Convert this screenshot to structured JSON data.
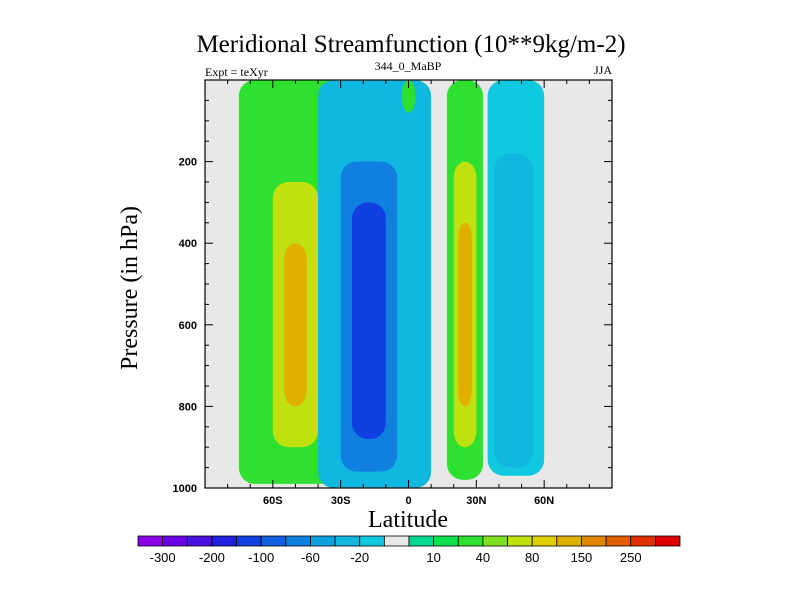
{
  "chart_data": {
    "type": "heatmap",
    "title": "Meridional Streamfunction (10**9kg/m-2)",
    "subtitle_left": "Expt = teXyr",
    "subtitle_center": "344_0_MaBP",
    "subtitle_right": "JJA",
    "xlabel": "Latitude",
    "ylabel": "Pressure (in hPa)",
    "xlim": [
      -90,
      90
    ],
    "ylim": [
      1000,
      0
    ],
    "x_ticks": [
      {
        "value": -60,
        "label": "60S"
      },
      {
        "value": -30,
        "label": "30S"
      },
      {
        "value": 0,
        "label": "0"
      },
      {
        "value": 30,
        "label": "30N"
      },
      {
        "value": 60,
        "label": "60N"
      }
    ],
    "y_ticks": [
      {
        "value": 200,
        "label": "200"
      },
      {
        "value": 400,
        "label": "400"
      },
      {
        "value": 600,
        "label": "600"
      },
      {
        "value": 800,
        "label": "800"
      },
      {
        "value": 1000,
        "label": "1000"
      }
    ],
    "colorbar": {
      "labels": [
        "-300",
        "-200",
        "-100",
        "-60",
        "-20",
        "10",
        "40",
        "80",
        "150",
        "250"
      ],
      "colors": [
        "#8c00e6",
        "#6a00e6",
        "#4a10e0",
        "#2020e0",
        "#1040e0",
        "#1060e0",
        "#1080e0",
        "#10a0e0",
        "#10b8e0",
        "#10c8e0",
        "#e8e8e8",
        "#00d890",
        "#10e050",
        "#30e030",
        "#80e020",
        "#c0e010",
        "#e0d000",
        "#e0b000",
        "#e08800",
        "#e06000",
        "#e03000",
        "#e00000"
      ]
    },
    "cells": [
      {
        "region": "sh-outer-cell",
        "lat_range": [
          -75,
          -30
        ],
        "p_range": [
          0,
          990
        ],
        "value": 20
      },
      {
        "region": "sh-outer-core",
        "lat_range": [
          -60,
          -40
        ],
        "p_range": [
          250,
          900
        ],
        "value": 60
      },
      {
        "region": "sh-outer-max",
        "lat_range": [
          -55,
          -45
        ],
        "p_range": [
          400,
          800
        ],
        "value": 90
      },
      {
        "region": "hadley-south-cell",
        "lat_range": [
          -40,
          10
        ],
        "p_range": [
          0,
          1000
        ],
        "value": -40
      },
      {
        "region": "hadley-south-core",
        "lat_range": [
          -30,
          -5
        ],
        "p_range": [
          200,
          960
        ],
        "value": -100
      },
      {
        "region": "hadley-south-max",
        "lat_range": [
          -25,
          -10
        ],
        "p_range": [
          300,
          880
        ],
        "value": -150
      },
      {
        "region": "equatorial-cell",
        "lat_range": [
          -3,
          3
        ],
        "p_range": [
          0,
          80
        ],
        "value": 20
      },
      {
        "region": "nh-subtropical-cell",
        "lat_range": [
          17,
          33
        ],
        "p_range": [
          0,
          980
        ],
        "value": 20
      },
      {
        "region": "nh-subtropical-core",
        "lat_range": [
          20,
          30
        ],
        "p_range": [
          200,
          900
        ],
        "value": 50
      },
      {
        "region": "nh-subtropical-max",
        "lat_range": [
          22,
          28
        ],
        "p_range": [
          350,
          800
        ],
        "value": 80
      },
      {
        "region": "nh-mid-cell",
        "lat_range": [
          35,
          60
        ],
        "p_range": [
          0,
          970
        ],
        "value": -20
      },
      {
        "region": "nh-mid-core",
        "lat_range": [
          38,
          55
        ],
        "p_range": [
          180,
          950
        ],
        "value": -40
      }
    ]
  }
}
